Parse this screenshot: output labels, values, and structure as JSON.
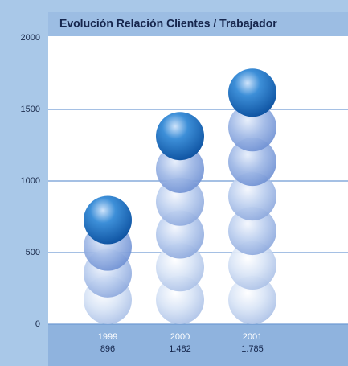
{
  "chart_data": {
    "type": "bar",
    "title": "Evolución Relación Clientes / Trabajador",
    "categories": [
      "1999",
      "2000",
      "2001"
    ],
    "values": [
      896,
      1482,
      1785
    ],
    "value_labels": [
      "896",
      "1.482",
      "1.785"
    ],
    "color": "#1f6fbf",
    "ylim": [
      0,
      2000
    ],
    "yticks": [
      0,
      500,
      1000,
      1500,
      2000
    ],
    "grid": true
  }
}
